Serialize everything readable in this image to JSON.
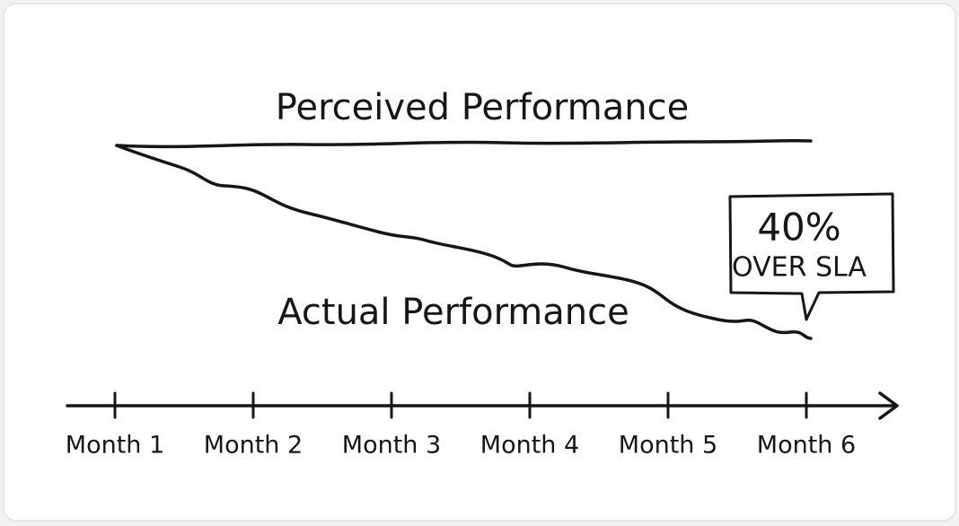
{
  "labels": {
    "perceived": "Perceived Performance",
    "actual": "Actual Performance"
  },
  "callout": {
    "headline": "40%",
    "text": "OVER SLA"
  },
  "axis": {
    "months": [
      "Month 1",
      "Month 2",
      "Month 3",
      "Month 4",
      "Month 5",
      "Month 6"
    ]
  }
}
